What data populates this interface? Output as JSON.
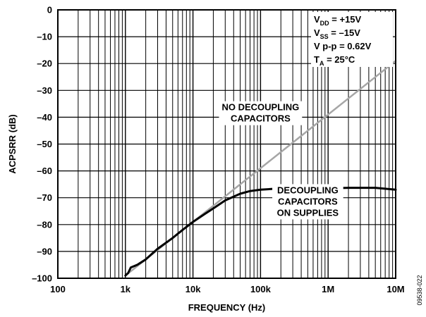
{
  "chart_data": {
    "type": "line",
    "xlabel": "FREQUENCY (Hz)",
    "ylabel": "ACPSRR (dB)",
    "xscale": "log",
    "xlim": [
      100,
      10000000
    ],
    "ylim": [
      -100,
      0
    ],
    "grid": true,
    "x_ticks": [
      {
        "value": 100,
        "label": "100"
      },
      {
        "value": 1000,
        "label": "1k"
      },
      {
        "value": 10000,
        "label": "10k"
      },
      {
        "value": 100000,
        "label": "100k"
      },
      {
        "value": 1000000,
        "label": "1M"
      },
      {
        "value": 10000000,
        "label": "10M"
      }
    ],
    "y_ticks": [
      {
        "value": 0,
        "label": "0"
      },
      {
        "value": -10,
        "label": "–10"
      },
      {
        "value": -20,
        "label": "–20"
      },
      {
        "value": -30,
        "label": "–30"
      },
      {
        "value": -40,
        "label": "–40"
      },
      {
        "value": -50,
        "label": "–50"
      },
      {
        "value": -60,
        "label": "–60"
      },
      {
        "value": -70,
        "label": "–70"
      },
      {
        "value": -80,
        "label": "–80"
      },
      {
        "value": -90,
        "label": "–90"
      },
      {
        "value": -100,
        "label": "–100"
      }
    ],
    "series": [
      {
        "name": "NO DECOUPLING CAPACITORS",
        "color": "#a6a6a6",
        "x": [
          1000,
          2000,
          5000,
          10000,
          20000,
          50000,
          100000,
          200000,
          500000,
          1000000,
          2000000,
          5000000,
          10000000
        ],
        "y": [
          -99,
          -93,
          -85,
          -79,
          -73,
          -65,
          -59,
          -53,
          -45,
          -39,
          -33,
          -25,
          -19
        ]
      },
      {
        "name": "DECOUPLING CAPACITORS ON SUPPLIES",
        "color": "#000000",
        "x": [
          1000,
          1100,
          1200,
          1500,
          2000,
          3000,
          5000,
          7000,
          10000,
          15000,
          20000,
          30000,
          50000,
          70000,
          100000,
          200000,
          500000,
          1000000,
          2000000,
          5000000,
          10000000
        ],
        "y": [
          -99,
          -98,
          -96,
          -95,
          -93,
          -89,
          -85,
          -82,
          -79,
          -76,
          -74,
          -71,
          -68.5,
          -67.5,
          -67,
          -66.5,
          -66.5,
          -66.5,
          -66.3,
          -66.3,
          -67
        ]
      }
    ],
    "annotations": [
      {
        "lines": [
          "NO DECOUPLING",
          "CAPACITORS"
        ],
        "x": 100000,
        "y": -38.5,
        "align": "center"
      },
      {
        "lines": [
          "DECOUPLING",
          "CAPACITORS",
          "ON SUPPLIES"
        ],
        "x": 500000,
        "y": -71.5,
        "align": "center"
      }
    ],
    "conditions": [
      {
        "main": "V",
        "sub": "DD",
        "rest": " = +15V"
      },
      {
        "main": "V",
        "sub": "SS",
        "rest": " = –15V"
      },
      {
        "main": "V p-p = 0.62V",
        "sub": "",
        "rest": ""
      },
      {
        "main": "T",
        "sub": "A",
        "rest": " = 25°C"
      }
    ],
    "figure_id": "09538-022"
  }
}
